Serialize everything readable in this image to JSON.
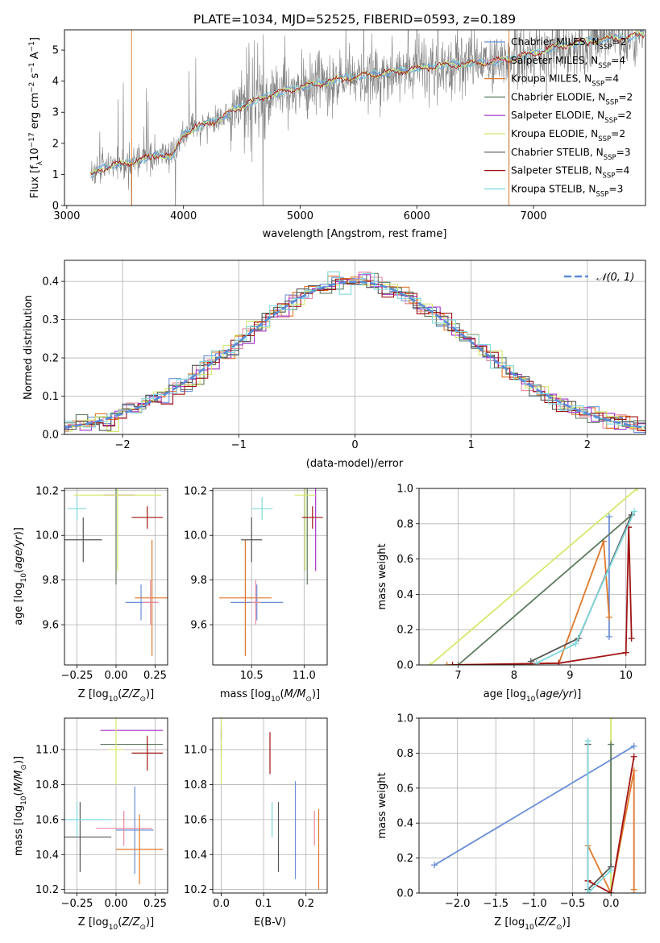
{
  "colors": {
    "chabrier_miles": "#6a8fd8",
    "salpeter_miles": "#e88aa0",
    "kroupa_miles": "#e0782a",
    "chabrier_elodie": "#5e7a60",
    "salpeter_elodie": "#a335c9",
    "kroupa_elodie": "#d4e86a",
    "chabrier_stelib": "#555555",
    "salpeter_stelib": "#a01515",
    "kroupa_stelib": "#7fd8dc",
    "data_spectrum": "#808080",
    "normal_curve": "#5b8bd6"
  },
  "chart_data": [
    {
      "type": "line",
      "title": "PLATE=1034, MJD=52525, FIBERID=0593, z=0.189",
      "xlabel": "wavelength [Angstrom, rest frame]",
      "ylabel": "Flux [f_λ 10^-17 erg cm^-2 s^-1 A^-1]",
      "xlim": [
        2980,
        7960
      ],
      "ylim": [
        0,
        5.65
      ],
      "xticks": [
        "3000",
        "4000",
        "5000",
        "6000",
        "7000"
      ],
      "yticks": [
        "0",
        "1",
        "2",
        "3",
        "4",
        "5"
      ],
      "legend_position": "right",
      "legend": [
        {
          "name": "Chabrier MILES",
          "nssp": "N",
          "sub": "SSP",
          "eq": "=2",
          "color_key": "chabrier_miles"
        },
        {
          "name": "Salpeter MILES",
          "nssp": "N",
          "sub": "SSP",
          "eq": "=4",
          "color_key": "salpeter_miles"
        },
        {
          "name": "Kroupa MILES",
          "nssp": "N",
          "sub": "SSP",
          "eq": "=4",
          "color_key": "kroupa_miles"
        },
        {
          "name": "Chabrier ELODIE",
          "nssp": "N",
          "sub": "SSP",
          "eq": "=2",
          "color_key": "chabrier_elodie"
        },
        {
          "name": "Salpeter ELODIE",
          "nssp": "N",
          "sub": "SSP",
          "eq": "=2",
          "color_key": "salpeter_elodie"
        },
        {
          "name": "Kroupa ELODIE",
          "nssp": "N",
          "sub": "SSP",
          "eq": "=2",
          "color_key": "kroupa_elodie"
        },
        {
          "name": "Chabrier STELIB",
          "nssp": "N",
          "sub": "SSP",
          "eq": "=3",
          "color_key": "chabrier_stelib"
        },
        {
          "name": "Salpeter STELIB",
          "nssp": "N",
          "sub": "SSP",
          "eq": "=4",
          "color_key": "salpeter_stelib"
        },
        {
          "name": "Kroupa STELIB",
          "nssp": "N",
          "sub": "SSP",
          "eq": "=3",
          "color_key": "kroupa_stelib"
        }
      ],
      "model_x": [
        3200,
        3300,
        3400,
        3500,
        3600,
        3700,
        3800,
        3900,
        4000,
        4100,
        4200,
        4300,
        4400,
        4500,
        4600,
        4700,
        4800,
        4900,
        5000,
        5200,
        5400,
        5600,
        5800,
        6000,
        6200,
        6400,
        6600,
        6800,
        7000,
        7200,
        7400,
        7600,
        7800,
        7950
      ],
      "model_y": [
        0.95,
        1.2,
        1.3,
        1.35,
        1.45,
        1.55,
        1.65,
        1.55,
        2.3,
        2.5,
        2.65,
        2.75,
        3.0,
        3.2,
        3.35,
        3.5,
        3.6,
        3.7,
        3.8,
        3.95,
        4.1,
        4.2,
        4.3,
        4.4,
        4.5,
        4.55,
        4.6,
        4.7,
        4.9,
        5.1,
        5.25,
        5.35,
        5.4,
        5.5
      ]
    },
    {
      "type": "histogram",
      "xlabel": "(data-model)/error",
      "ylabel": "Normed distribution",
      "xlim": [
        -2.5,
        2.5
      ],
      "ylim": [
        0,
        0.455
      ],
      "xticks": [
        "−2",
        "−1",
        "0",
        "1",
        "2"
      ],
      "yticks": [
        "0.0",
        "0.1",
        "0.2",
        "0.3",
        "0.4"
      ],
      "grid": true,
      "legend_position": "top-right",
      "legend": "𝒩(0, 1)",
      "normal_mean": 0,
      "normal_sigma": 1
    },
    {
      "type": "scatter",
      "xlabel": "Z [log10(Z/Z⊙)]",
      "ylabel": "age  [log10(age/yr)]",
      "xlim": [
        -0.33,
        0.33
      ],
      "ylim": [
        9.42,
        10.21
      ],
      "xticks": [
        "−0.25",
        "0.00",
        "0.25"
      ],
      "yticks": [
        "9.6",
        "9.8",
        "10.0",
        "10.2"
      ],
      "grid": true,
      "points": [
        {
          "model": "chabrier_miles",
          "x": 0.16,
          "y": 9.7,
          "xerr": 0.1,
          "yerr": 0.08
        },
        {
          "model": "kroupa_miles",
          "x": 0.23,
          "y": 9.72,
          "xerr": 0.11,
          "yerr": 0.26
        },
        {
          "model": "salpeter_miles",
          "x": 0.22,
          "y": 9.7,
          "xerr": 0.05,
          "yerr": 0.1
        },
        {
          "model": "chabrier_elodie",
          "x": 0.0,
          "y": 10.18,
          "xerr": 0.0,
          "yerr": 0.4
        },
        {
          "model": "salpeter_elodie",
          "x": 0.02,
          "y": 10.18,
          "xerr": 0.1,
          "yerr": 0.0
        },
        {
          "model": "kroupa_elodie",
          "x": 0.01,
          "y": 10.18,
          "xerr": 0.28,
          "yerr": 0.34
        },
        {
          "model": "chabrier_stelib",
          "x": -0.21,
          "y": 9.98,
          "xerr": 0.12,
          "yerr": 0.1
        },
        {
          "model": "salpeter_stelib",
          "x": 0.2,
          "y": 10.08,
          "xerr": 0.1,
          "yerr": 0.05
        },
        {
          "model": "kroupa_stelib",
          "x": -0.25,
          "y": 10.12,
          "xerr": 0.06,
          "yerr": 0.05
        }
      ]
    },
    {
      "type": "scatter",
      "xlabel": "mass [log10(M/M⊙)]",
      "ylabel": "",
      "xlim": [
        10.13,
        11.22
      ],
      "ylim": [
        9.42,
        10.21
      ],
      "xticks": [
        "10.5",
        "11.0"
      ],
      "yticks": [
        "9.6",
        "9.8",
        "10.0",
        "10.2"
      ],
      "grid": true,
      "points": [
        {
          "model": "chabrier_miles",
          "x": 10.55,
          "y": 9.7,
          "xerr": 0.25,
          "yerr": 0.08
        },
        {
          "model": "kroupa_miles",
          "x": 10.44,
          "y": 9.72,
          "xerr": 0.25,
          "yerr": 0.26
        },
        {
          "model": "salpeter_miles",
          "x": 10.54,
          "y": 9.7,
          "xerr": 0.05,
          "yerr": 0.1
        },
        {
          "model": "chabrier_elodie",
          "x": 11.03,
          "y": 10.18,
          "xerr": 0.0,
          "yerr": 0.4
        },
        {
          "model": "salpeter_elodie",
          "x": 11.11,
          "y": 10.18,
          "xerr": 0.0,
          "yerr": 0.34
        },
        {
          "model": "kroupa_elodie",
          "x": 11.01,
          "y": 10.18,
          "xerr": 0.1,
          "yerr": 0.34
        },
        {
          "model": "chabrier_stelib",
          "x": 10.5,
          "y": 9.98,
          "xerr": 0.1,
          "yerr": 0.1
        },
        {
          "model": "salpeter_stelib",
          "x": 11.08,
          "y": 10.08,
          "xerr": 0.1,
          "yerr": 0.05
        },
        {
          "model": "kroupa_stelib",
          "x": 10.6,
          "y": 10.12,
          "xerr": 0.1,
          "yerr": 0.05
        }
      ]
    },
    {
      "type": "line",
      "xlabel": "age  [log10(age/yr)]",
      "ylabel": "mass weight",
      "xlim": [
        6.3,
        10.35
      ],
      "ylim": [
        0,
        1.0
      ],
      "xticks": [
        "7",
        "8",
        "9",
        "10"
      ],
      "yticks": [
        "0.0",
        "0.2",
        "0.4",
        "0.6",
        "0.8",
        "1.0"
      ],
      "grid": true,
      "series": [
        {
          "model": "chabrier_miles",
          "x": [
            9.7,
            9.7
          ],
          "y": [
            0.16,
            0.84
          ]
        },
        {
          "model": "kroupa_miles",
          "x": [
            6.8,
            8.8,
            9.6,
            9.7
          ],
          "y": [
            0.0,
            0.01,
            0.7,
            0.27
          ]
        },
        {
          "model": "kroupa_elodie",
          "x": [
            6.5,
            10.2
          ],
          "y": [
            0.0,
            1.0
          ]
        },
        {
          "model": "chabrier_elodie",
          "x": [
            7.0,
            10.1
          ],
          "y": [
            0.0,
            0.85
          ]
        },
        {
          "model": "chabrier_stelib",
          "x": [
            8.3,
            9.15,
            10.1
          ],
          "y": [
            0.02,
            0.15,
            0.85
          ]
        },
        {
          "model": "salpeter_stelib",
          "x": [
            6.9,
            8.8,
            10.0,
            10.05,
            10.1
          ],
          "y": [
            0.0,
            0.01,
            0.07,
            0.78,
            0.15
          ]
        },
        {
          "model": "kroupa_stelib",
          "x": [
            8.4,
            9.1,
            10.15
          ],
          "y": [
            0.01,
            0.12,
            0.87
          ]
        }
      ]
    },
    {
      "type": "scatter",
      "xlabel": "Z [log10(Z/Z⊙)]",
      "ylabel": "mass [log10(M/M⊙)]",
      "xlim": [
        -0.33,
        0.33
      ],
      "ylim": [
        10.18,
        11.18
      ],
      "xticks": [
        "−0.25",
        "0.00",
        "0.25"
      ],
      "yticks": [
        "10.2",
        "10.4",
        "10.6",
        "10.8",
        "11.0"
      ],
      "grid": true,
      "points": [
        {
          "model": "chabrier_miles",
          "x": 0.12,
          "y": 10.54,
          "xerr": 0.12,
          "yerr": 0.25
        },
        {
          "model": "kroupa_miles",
          "x": 0.15,
          "y": 10.43,
          "xerr": 0.15,
          "yerr": 0.2
        },
        {
          "model": "salpeter_miles",
          "x": 0.05,
          "y": 10.55,
          "xerr": 0.18,
          "yerr": 0.1
        },
        {
          "model": "chabrier_elodie",
          "x": 0.1,
          "y": 11.03,
          "xerr": 0.2,
          "yerr": 0.0
        },
        {
          "model": "salpeter_elodie",
          "x": 0.1,
          "y": 11.11,
          "xerr": 0.2,
          "yerr": 0.0
        },
        {
          "model": "kroupa_elodie",
          "x": 0.0,
          "y": 11.0,
          "xerr": 0.05,
          "yerr": 0.2
        },
        {
          "model": "chabrier_stelib",
          "x": -0.23,
          "y": 10.5,
          "xerr": 0.2,
          "yerr": 0.2
        },
        {
          "model": "salpeter_stelib",
          "x": 0.2,
          "y": 10.98,
          "xerr": 0.1,
          "yerr": 0.1
        },
        {
          "model": "kroupa_stelib",
          "x": -0.25,
          "y": 10.6,
          "xerr": 0.22,
          "yerr": 0.1
        }
      ]
    },
    {
      "type": "scatter",
      "xlabel": "E(B-V)",
      "ylabel": "",
      "xlim": [
        -0.02,
        0.25
      ],
      "ylim": [
        10.18,
        11.18
      ],
      "xticks": [
        "0.0",
        "0.1",
        "0.2"
      ],
      "yticks": [
        "10.2",
        "10.4",
        "10.6",
        "10.8",
        "11.0"
      ],
      "grid": true,
      "points": [
        {
          "model": "chabrier_miles",
          "x": 0.175,
          "y": 10.54,
          "xerr": 0,
          "yerr": 0.28
        },
        {
          "model": "kroupa_miles",
          "x": 0.23,
          "y": 10.43,
          "xerr": 0,
          "yerr": 0.23
        },
        {
          "model": "salpeter_miles",
          "x": 0.22,
          "y": 10.55,
          "xerr": 0,
          "yerr": 0.1
        },
        {
          "model": "chabrier_elodie",
          "x": 0.0,
          "y": 11.03,
          "xerr": 0,
          "yerr": 0.08
        },
        {
          "model": "salpeter_elodie",
          "x": 0.0,
          "y": 11.11,
          "xerr": 0,
          "yerr": 0.05
        },
        {
          "model": "kroupa_elodie",
          "x": 0.0,
          "y": 11.0,
          "xerr": 0,
          "yerr": 0.2
        },
        {
          "model": "chabrier_stelib",
          "x": 0.135,
          "y": 10.5,
          "xerr": 0,
          "yerr": 0.2
        },
        {
          "model": "salpeter_stelib",
          "x": 0.115,
          "y": 10.98,
          "xerr": 0,
          "yerr": 0.12
        },
        {
          "model": "kroupa_stelib",
          "x": 0.12,
          "y": 10.6,
          "xerr": 0,
          "yerr": 0.1
        }
      ]
    },
    {
      "type": "line",
      "xlabel": "Z [log10(Z/Z⊙)]",
      "ylabel": "mass weight",
      "xlim": [
        -2.5,
        0.45
      ],
      "ylim": [
        0,
        1.0
      ],
      "xticks": [
        "−2.0",
        "−1.5",
        "−1.0",
        "−0.5",
        "0.0"
      ],
      "yticks": [
        "0.0",
        "0.2",
        "0.4",
        "0.6",
        "0.8",
        "1.0"
      ],
      "grid": true,
      "series": [
        {
          "model": "chabrier_miles",
          "x": [
            -2.3,
            0.3
          ],
          "y": [
            0.16,
            0.84
          ]
        },
        {
          "model": "kroupa_miles",
          "x": [
            -0.3,
            0.0,
            0.3,
            0.3
          ],
          "y": [
            0.27,
            0.0,
            0.7,
            0.02
          ]
        },
        {
          "model": "kroupa_elodie",
          "x": [
            0.0,
            0.0
          ],
          "y": [
            0.0,
            1.0
          ]
        },
        {
          "model": "chabrier_elodie",
          "x": [
            0.0,
            0.0
          ],
          "y": [
            0.15,
            0.85
          ]
        },
        {
          "model": "chabrier_stelib",
          "x": [
            -0.3,
            -0.3,
            0.0
          ],
          "y": [
            0.85,
            0.02,
            0.15
          ]
        },
        {
          "model": "salpeter_stelib",
          "x": [
            -0.3,
            0.0,
            0.3
          ],
          "y": [
            0.07,
            0.0,
            0.78
          ]
        },
        {
          "model": "kroupa_stelib",
          "x": [
            -0.3,
            -0.3,
            0.0
          ],
          "y": [
            0.87,
            0.0,
            0.13
          ]
        }
      ]
    }
  ]
}
